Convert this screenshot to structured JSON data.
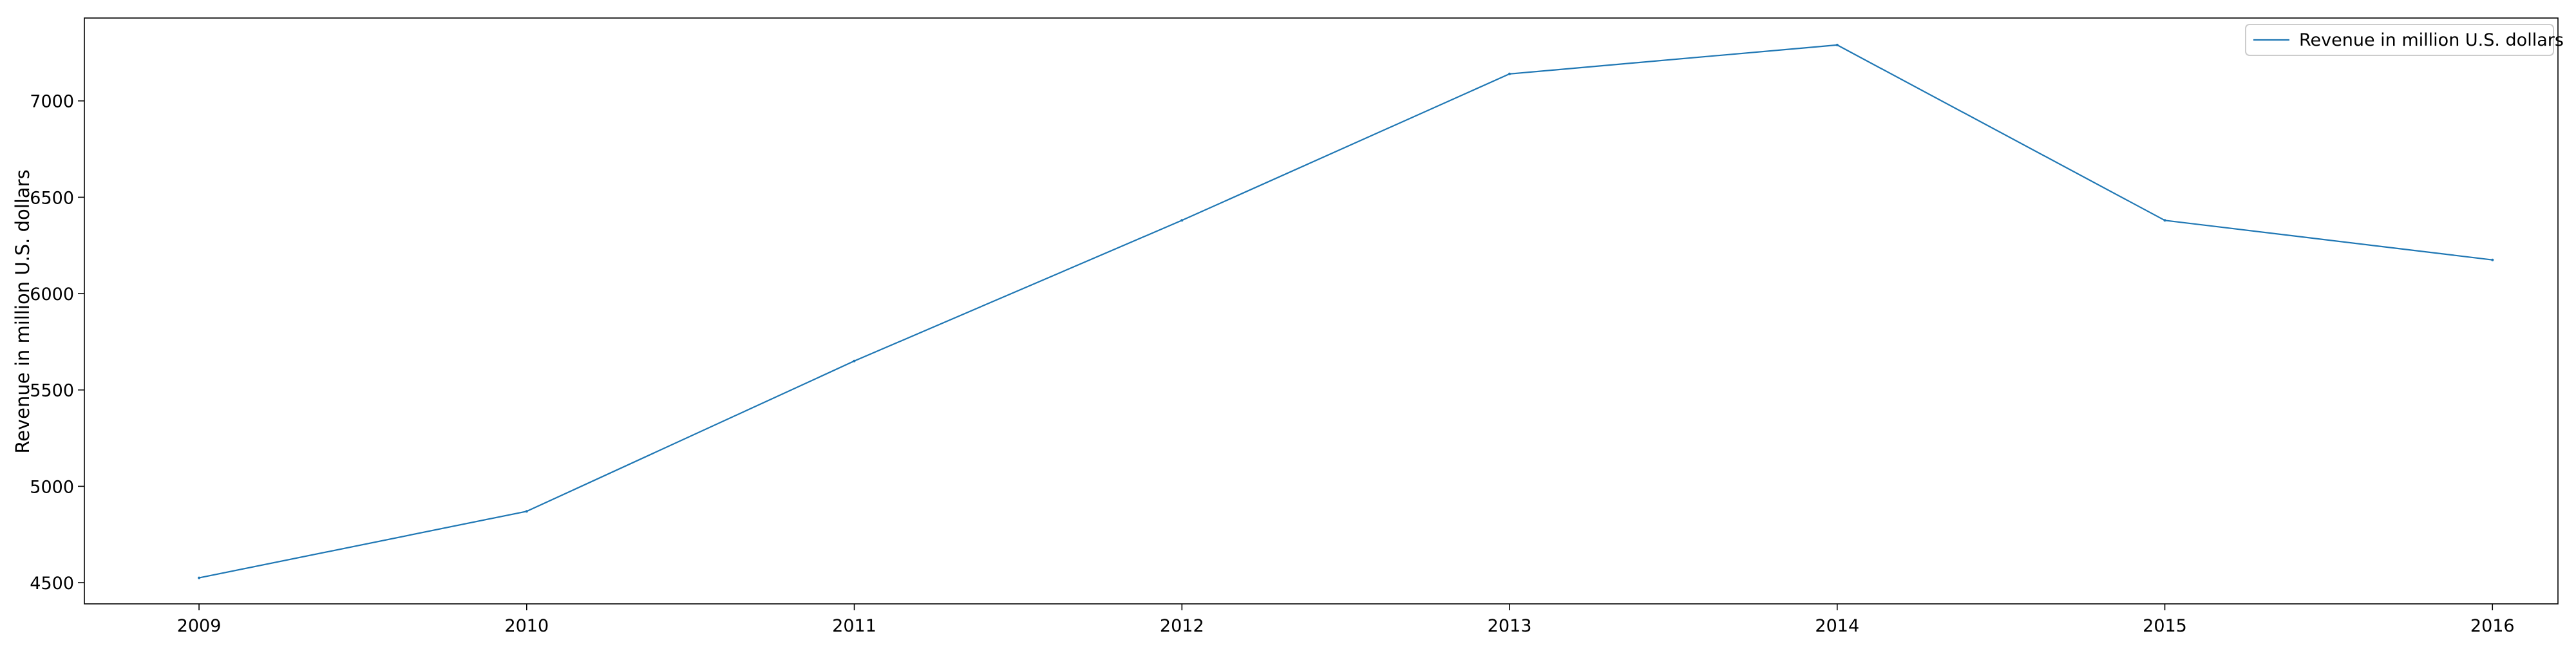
{
  "chart_data": {
    "type": "line",
    "title": "",
    "xlabel": "",
    "ylabel": "Revenue in million U.S. dollars",
    "x": [
      2009,
      2010,
      2011,
      2012,
      2013,
      2014,
      2015,
      2016
    ],
    "x_tick_labels": [
      "2009",
      "2010",
      "2011",
      "2012",
      "2013",
      "2014",
      "2015",
      "2016"
    ],
    "y_ticks": [
      4500,
      5000,
      5500,
      6000,
      6500,
      7000
    ],
    "y_tick_labels": [
      "4500",
      "5000",
      "5500",
      "6000",
      "6500",
      "7000"
    ],
    "xlim": [
      2008.65,
      2016.2
    ],
    "ylim": [
      4390,
      7430
    ],
    "grid": false,
    "legend_position": "upper right",
    "series": [
      {
        "name": "Revenue in million U.S. dollars",
        "color": "#1f77b4",
        "values": [
          4525,
          4870,
          5650,
          6380,
          7140,
          7290,
          6380,
          6175
        ]
      }
    ]
  }
}
